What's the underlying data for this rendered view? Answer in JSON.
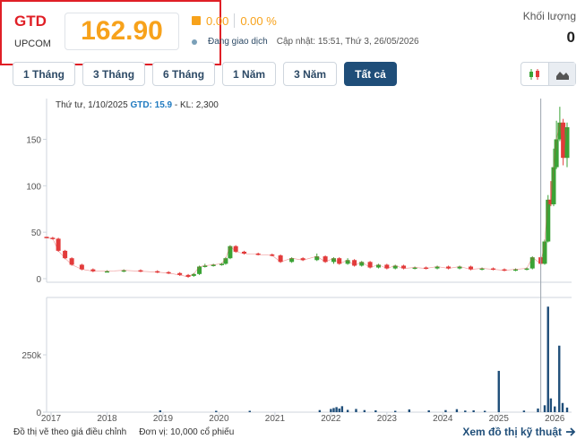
{
  "quote": {
    "symbol": "GTD",
    "exchange": "UPCOM",
    "price": "162.90",
    "change": "0.00",
    "change_pct": "0.00 %",
    "trading_status": "Đang giao dịch",
    "updated": "Cập nhật: 15:51, Thứ 3, 26/05/2026",
    "volume_label": "Khối lượng",
    "volume_value": "0"
  },
  "ranges": [
    "1 Tháng",
    "3 Tháng",
    "6 Tháng",
    "1 Năm",
    "3 Năm",
    "Tất cả"
  ],
  "active_range": "Tất cả",
  "chart_type_icons": [
    "candlestick-icon",
    "area-chart-icon"
  ],
  "tooltip": {
    "date": "Thứ tư, 1/10/2025",
    "gtd_label": "GTD:",
    "gtd_value": "15.9",
    "kl": "- KL: 2,300"
  },
  "footer": {
    "note": "Đồ thị vẽ theo giá điều chỉnh",
    "unit": "Đơn vị: 10,000 cổ phiếu",
    "link": "Xem đồ thị kỹ thuật"
  },
  "colors": {
    "up": "#3aa335",
    "down": "#e23b3b",
    "accent": "#f7a21b",
    "brand": "#1f4e79",
    "highlight": "#e01f26"
  },
  "chart_data": {
    "type": "candlestick",
    "x_ticks": [
      "2017",
      "2018",
      "2019",
      "2020",
      "2021",
      "2022",
      "2023",
      "2024",
      "2025",
      "2026"
    ],
    "price_ticks": [
      "150",
      "100",
      "50",
      "0"
    ],
    "volume_ticks": [
      "250k",
      "0"
    ],
    "ylim": [
      0,
      190
    ],
    "crosshair_date": 2025.75,
    "candles": [
      {
        "t": 2016.92,
        "o": 45,
        "c": 44,
        "h": 45,
        "l": 44
      },
      {
        "t": 2017.03,
        "o": 44,
        "c": 43,
        "h": 45,
        "l": 42
      },
      {
        "t": 2017.13,
        "o": 43,
        "c": 30,
        "h": 44,
        "l": 29
      },
      {
        "t": 2017.25,
        "o": 30,
        "c": 22,
        "h": 31,
        "l": 21
      },
      {
        "t": 2017.37,
        "o": 22,
        "c": 15,
        "h": 23,
        "l": 14
      },
      {
        "t": 2017.55,
        "o": 15,
        "c": 10,
        "h": 16,
        "l": 9
      },
      {
        "t": 2017.75,
        "o": 10,
        "c": 8,
        "h": 11,
        "l": 7
      },
      {
        "t": 2018.0,
        "o": 8,
        "c": 8,
        "h": 9,
        "l": 7
      },
      {
        "t": 2018.3,
        "o": 8,
        "c": 9,
        "h": 10,
        "l": 7
      },
      {
        "t": 2018.6,
        "o": 9,
        "c": 8,
        "h": 10,
        "l": 7
      },
      {
        "t": 2018.9,
        "o": 8,
        "c": 7,
        "h": 9,
        "l": 6
      },
      {
        "t": 2019.1,
        "o": 7,
        "c": 6,
        "h": 8,
        "l": 5
      },
      {
        "t": 2019.3,
        "o": 6,
        "c": 4,
        "h": 7,
        "l": 3
      },
      {
        "t": 2019.45,
        "o": 4,
        "c": 2,
        "h": 5,
        "l": 1
      },
      {
        "t": 2019.55,
        "o": 3,
        "c": 5,
        "h": 6,
        "l": 2
      },
      {
        "t": 2019.65,
        "o": 5,
        "c": 13,
        "h": 14,
        "l": 4
      },
      {
        "t": 2019.75,
        "o": 13,
        "c": 14,
        "h": 16,
        "l": 12
      },
      {
        "t": 2019.9,
        "o": 14,
        "c": 15,
        "h": 16,
        "l": 13
      },
      {
        "t": 2020.05,
        "o": 15,
        "c": 16,
        "h": 17,
        "l": 14
      },
      {
        "t": 2020.12,
        "o": 16,
        "c": 22,
        "h": 23,
        "l": 15
      },
      {
        "t": 2020.2,
        "o": 22,
        "c": 35,
        "h": 36,
        "l": 21
      },
      {
        "t": 2020.3,
        "o": 35,
        "c": 29,
        "h": 36,
        "l": 28
      },
      {
        "t": 2020.45,
        "o": 29,
        "c": 27,
        "h": 30,
        "l": 26
      },
      {
        "t": 2020.7,
        "o": 27,
        "c": 26,
        "h": 28,
        "l": 25
      },
      {
        "t": 2020.95,
        "o": 26,
        "c": 25,
        "h": 27,
        "l": 24
      },
      {
        "t": 2021.1,
        "o": 25,
        "c": 18,
        "h": 26,
        "l": 17
      },
      {
        "t": 2021.3,
        "o": 18,
        "c": 22,
        "h": 23,
        "l": 17
      },
      {
        "t": 2021.5,
        "o": 22,
        "c": 20,
        "h": 23,
        "l": 19
      },
      {
        "t": 2021.75,
        "o": 20,
        "c": 24,
        "h": 27,
        "l": 19
      },
      {
        "t": 2021.9,
        "o": 24,
        "c": 18,
        "h": 25,
        "l": 17
      },
      {
        "t": 2022.05,
        "o": 18,
        "c": 22,
        "h": 23,
        "l": 16
      },
      {
        "t": 2022.15,
        "o": 22,
        "c": 16,
        "h": 23,
        "l": 15
      },
      {
        "t": 2022.3,
        "o": 16,
        "c": 20,
        "h": 22,
        "l": 15
      },
      {
        "t": 2022.42,
        "o": 20,
        "c": 14,
        "h": 21,
        "l": 13
      },
      {
        "t": 2022.55,
        "o": 14,
        "c": 18,
        "h": 19,
        "l": 13
      },
      {
        "t": 2022.7,
        "o": 18,
        "c": 12,
        "h": 19,
        "l": 11
      },
      {
        "t": 2022.85,
        "o": 12,
        "c": 15,
        "h": 16,
        "l": 11
      },
      {
        "t": 2023.0,
        "o": 15,
        "c": 11,
        "h": 16,
        "l": 10
      },
      {
        "t": 2023.15,
        "o": 11,
        "c": 14,
        "h": 15,
        "l": 10
      },
      {
        "t": 2023.3,
        "o": 14,
        "c": 11,
        "h": 15,
        "l": 10
      },
      {
        "t": 2023.5,
        "o": 11,
        "c": 12,
        "h": 13,
        "l": 10
      },
      {
        "t": 2023.7,
        "o": 12,
        "c": 11,
        "h": 13,
        "l": 10
      },
      {
        "t": 2023.9,
        "o": 11,
        "c": 13,
        "h": 14,
        "l": 10
      },
      {
        "t": 2024.1,
        "o": 13,
        "c": 11,
        "h": 14,
        "l": 10
      },
      {
        "t": 2024.3,
        "o": 11,
        "c": 13,
        "h": 14,
        "l": 10
      },
      {
        "t": 2024.5,
        "o": 13,
        "c": 10,
        "h": 14,
        "l": 9
      },
      {
        "t": 2024.7,
        "o": 10,
        "c": 11,
        "h": 12,
        "l": 9
      },
      {
        "t": 2024.9,
        "o": 11,
        "c": 10,
        "h": 12,
        "l": 9
      },
      {
        "t": 2025.1,
        "o": 10,
        "c": 9,
        "h": 11,
        "l": 8
      },
      {
        "t": 2025.3,
        "o": 9,
        "c": 10,
        "h": 11,
        "l": 8
      },
      {
        "t": 2025.5,
        "o": 10,
        "c": 11,
        "h": 12,
        "l": 9
      },
      {
        "t": 2025.6,
        "o": 11,
        "c": 23,
        "h": 24,
        "l": 10
      },
      {
        "t": 2025.75,
        "o": 23,
        "c": 16,
        "h": 24,
        "l": 15
      },
      {
        "t": 2025.82,
        "o": 16,
        "c": 40,
        "h": 42,
        "l": 15
      },
      {
        "t": 2025.88,
        "o": 40,
        "c": 85,
        "h": 90,
        "l": 39
      },
      {
        "t": 2025.93,
        "o": 85,
        "c": 80,
        "h": 105,
        "l": 78
      },
      {
        "t": 2025.98,
        "o": 80,
        "c": 120,
        "h": 140,
        "l": 78
      },
      {
        "t": 2026.03,
        "o": 120,
        "c": 150,
        "h": 170,
        "l": 118
      },
      {
        "t": 2026.09,
        "o": 150,
        "c": 168,
        "h": 185,
        "l": 148
      },
      {
        "t": 2026.15,
        "o": 168,
        "c": 130,
        "h": 172,
        "l": 122
      },
      {
        "t": 2026.22,
        "o": 130,
        "c": 163,
        "h": 168,
        "l": 120
      }
    ],
    "volumes": [
      {
        "t": 2018.95,
        "v": 8000
      },
      {
        "t": 2019.95,
        "v": 6000
      },
      {
        "t": 2020.55,
        "v": 6000
      },
      {
        "t": 2021.8,
        "v": 9000
      },
      {
        "t": 2022.0,
        "v": 14000
      },
      {
        "t": 2022.05,
        "v": 18000
      },
      {
        "t": 2022.1,
        "v": 22000
      },
      {
        "t": 2022.15,
        "v": 16000
      },
      {
        "t": 2022.2,
        "v": 26000
      },
      {
        "t": 2022.3,
        "v": 10000
      },
      {
        "t": 2022.45,
        "v": 14000
      },
      {
        "t": 2022.6,
        "v": 9000
      },
      {
        "t": 2022.8,
        "v": 8000
      },
      {
        "t": 2023.15,
        "v": 6000
      },
      {
        "t": 2023.4,
        "v": 12000
      },
      {
        "t": 2023.75,
        "v": 8000
      },
      {
        "t": 2024.05,
        "v": 9000
      },
      {
        "t": 2024.25,
        "v": 13000
      },
      {
        "t": 2024.4,
        "v": 7000
      },
      {
        "t": 2024.55,
        "v": 8000
      },
      {
        "t": 2024.75,
        "v": 6000
      },
      {
        "t": 2025.0,
        "v": 180000
      },
      {
        "t": 2025.45,
        "v": 7000
      },
      {
        "t": 2025.7,
        "v": 16000
      },
      {
        "t": 2025.82,
        "v": 30000
      },
      {
        "t": 2025.88,
        "v": 460000
      },
      {
        "t": 2025.93,
        "v": 60000
      },
      {
        "t": 2026.0,
        "v": 25000
      },
      {
        "t": 2026.08,
        "v": 290000
      },
      {
        "t": 2026.14,
        "v": 40000
      },
      {
        "t": 2026.22,
        "v": 20000
      }
    ]
  }
}
